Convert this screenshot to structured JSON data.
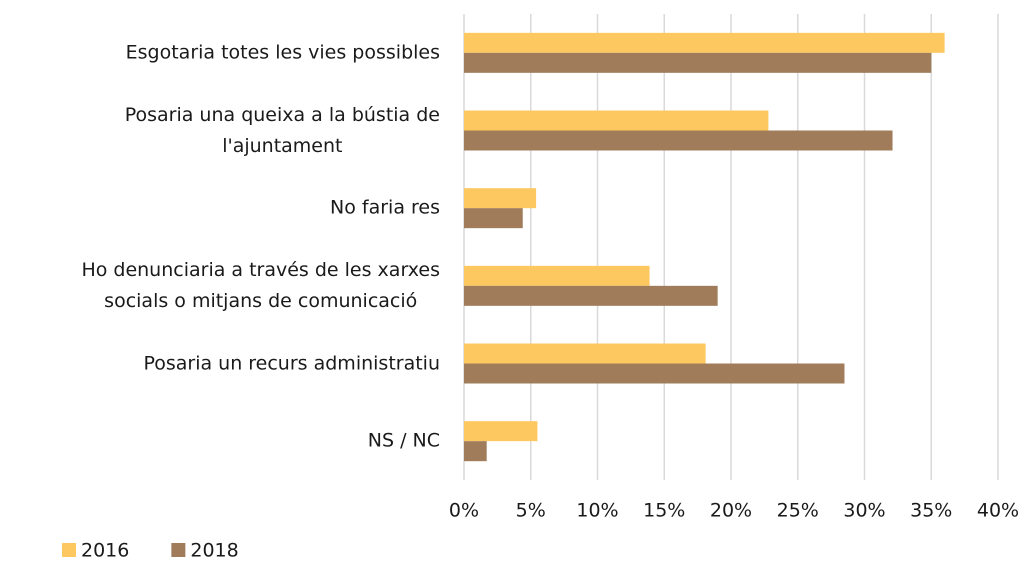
{
  "chart_data": {
    "type": "bar",
    "orientation": "horizontal",
    "categories": [
      "Esgotaria totes les vies possibles",
      "Posaria una queixa a la bústia de\nl'ajuntament",
      "No faria res",
      "Ho denunciaria a través de les xarxes\nsocials o mitjans de comunicació",
      "Posaria un recurs administratiu",
      "NS / NC"
    ],
    "series": [
      {
        "name": "2016",
        "color": "#fec861",
        "values": [
          36.0,
          22.8,
          5.4,
          13.9,
          18.1,
          5.5
        ]
      },
      {
        "name": "2018",
        "color": "#a07c5b",
        "values": [
          35.0,
          32.1,
          4.4,
          19.0,
          28.5,
          1.7
        ]
      }
    ],
    "xlim": [
      0,
      40
    ],
    "xticks": [
      {
        "value": 0,
        "label": "0%"
      },
      {
        "value": 5,
        "label": "5%"
      },
      {
        "value": 10,
        "label": "10%"
      },
      {
        "value": 15,
        "label": "15%"
      },
      {
        "value": 20,
        "label": "20%"
      },
      {
        "value": 25,
        "label": "25%"
      },
      {
        "value": 30,
        "label": "30%"
      },
      {
        "value": 35,
        "label": "35%"
      },
      {
        "value": 40,
        "label": "40%"
      }
    ],
    "grid": true,
    "legend": "bottom-left"
  }
}
